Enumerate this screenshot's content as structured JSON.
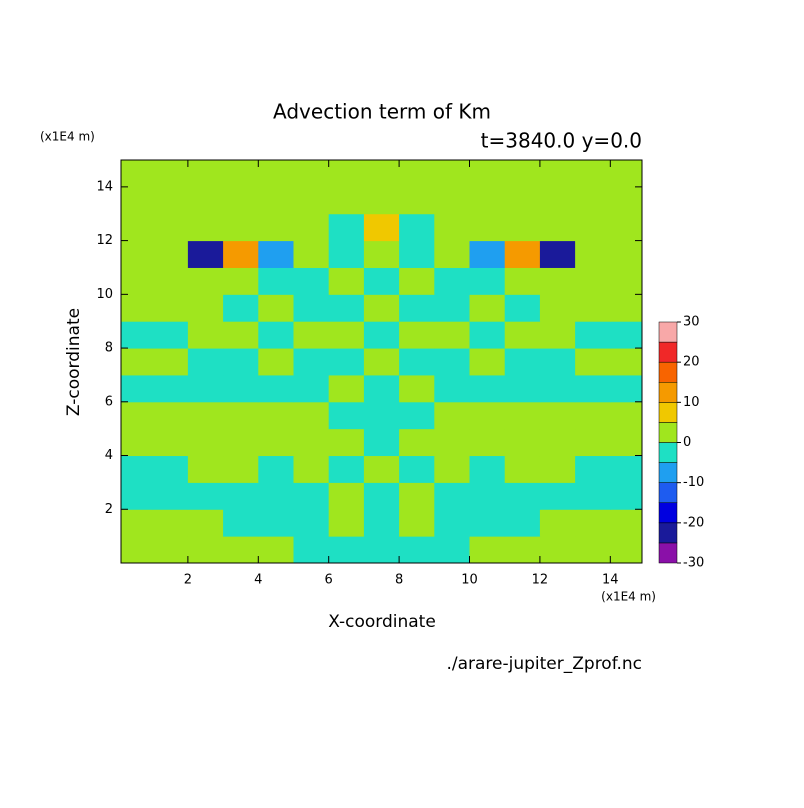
{
  "chart_data": {
    "type": "contour",
    "title": "Advection term of Km",
    "subtitle": "t=3840.0 y=0.0",
    "x_label": "X-coordinate",
    "y_label": "Z-coordinate",
    "x_unit": "(x1E4 m)",
    "y_unit": "(x1E4 m)",
    "source": "./arare-jupiter_Zprof.nc",
    "xlim": [
      0.1,
      14.9
    ],
    "ylim": [
      0,
      15
    ],
    "xticks": [
      2,
      4,
      6,
      8,
      10,
      12,
      14
    ],
    "yticks": [
      2,
      4,
      6,
      8,
      10,
      12,
      14
    ],
    "x": [
      0.5,
      1.5,
      2.5,
      3.5,
      4.5,
      5.5,
      6.5,
      7.5,
      8.5,
      9.5,
      10.5,
      11.5,
      12.5,
      13.5,
      14.5
    ],
    "y": [
      0.5,
      1.5,
      2.5,
      3.5,
      4.5,
      5.5,
      6.5,
      7.5,
      8.5,
      9.5,
      10.5,
      11.5,
      12.5,
      13.5,
      14.5
    ],
    "z": [
      [
        2,
        2,
        2,
        2,
        2,
        -2,
        -2,
        -2,
        -2,
        -2,
        2,
        2,
        2,
        2,
        2
      ],
      [
        2,
        2,
        2,
        -2,
        -2,
        -2,
        2,
        -2,
        2,
        -2,
        -2,
        -2,
        2,
        2,
        2
      ],
      [
        -2,
        -2,
        -2,
        -2,
        -2,
        -2,
        2,
        -2,
        2,
        -2,
        -2,
        -2,
        -2,
        -2,
        -2
      ],
      [
        -2,
        -2,
        2,
        2,
        -2,
        2,
        -2,
        2,
        -2,
        2,
        -2,
        2,
        2,
        -2,
        -2
      ],
      [
        2,
        2,
        2,
        2,
        2,
        2,
        2,
        -2,
        2,
        2,
        2,
        2,
        2,
        2,
        2
      ],
      [
        2,
        2,
        2,
        2,
        2,
        2,
        -2,
        -2,
        -2,
        2,
        2,
        2,
        2,
        2,
        2
      ],
      [
        -2,
        -2,
        -2,
        -2,
        -2,
        -2,
        2,
        -2,
        2,
        -2,
        -2,
        -2,
        -2,
        -2,
        -2
      ],
      [
        2,
        2,
        -2,
        -2,
        2,
        -2,
        -2,
        2,
        -2,
        -2,
        2,
        -2,
        -2,
        2,
        2
      ],
      [
        -2,
        -2,
        2,
        2,
        -2,
        2,
        4,
        -2,
        4,
        2,
        -2,
        2,
        2,
        -2,
        -2
      ],
      [
        2,
        2,
        2,
        -2,
        2,
        -2,
        -2,
        2,
        -2,
        -2,
        2,
        -2,
        2,
        2,
        2
      ],
      [
        2,
        2,
        2,
        2,
        -2,
        -2,
        2,
        -2,
        2,
        -2,
        -2,
        2,
        2,
        2,
        2
      ],
      [
        2,
        2,
        -22,
        14,
        -8,
        2,
        -2,
        2,
        -2,
        2,
        -8,
        14,
        -22,
        2,
        2
      ],
      [
        2,
        2,
        2,
        2,
        2,
        2,
        -2,
        8,
        -2,
        2,
        2,
        2,
        2,
        2,
        2
      ],
      [
        2,
        2,
        2,
        2,
        2,
        2,
        2,
        2,
        2,
        2,
        2,
        2,
        2,
        2,
        2
      ],
      [
        2,
        2,
        2,
        2,
        2,
        2,
        2,
        2,
        2,
        2,
        2,
        2,
        2,
        2,
        2
      ]
    ],
    "levels": [
      -30,
      -25,
      -20,
      -15,
      -10,
      -5,
      0,
      5,
      10,
      15,
      20,
      25,
      30
    ],
    "colors": [
      "#8a10a8",
      "#1a1a9a",
      "#0000e0",
      "#1e5cf0",
      "#1f9ff0",
      "#1ee0c4",
      "#a0e61e",
      "#f0c800",
      "#f59a00",
      "#f86400",
      "#f02828",
      "#f8a8a8"
    ],
    "colorbar_ticks": [
      -30,
      -20,
      -10,
      0,
      10,
      20,
      30
    ]
  }
}
